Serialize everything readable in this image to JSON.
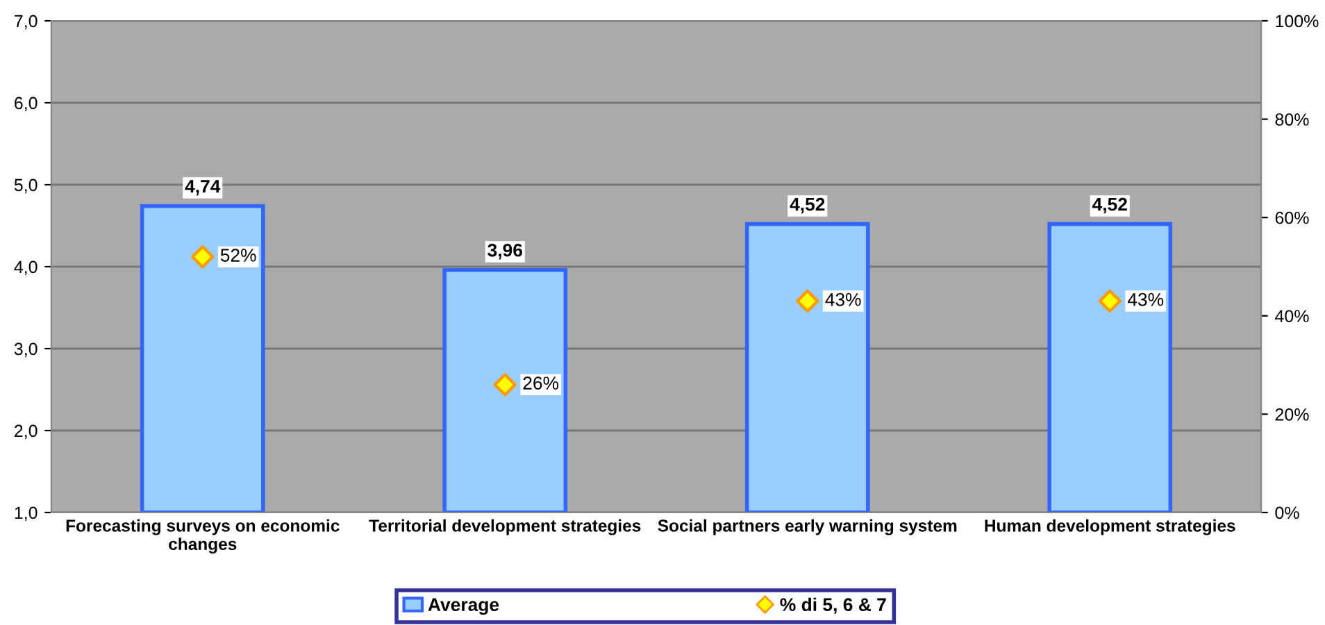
{
  "chart_data": {
    "type": "bar",
    "categories": [
      "Forecasting surveys on economic\nchanges",
      "Territorial development strategies",
      "Social partners early warning system",
      "Human development strategies"
    ],
    "series": [
      {
        "name": "Average",
        "color": "#99ccff",
        "values": [
          4.74,
          3.96,
          4.52,
          4.52
        ],
        "value_labels": [
          "4,74",
          "3,96",
          "4,52",
          "4,52"
        ]
      },
      {
        "name": "% di 5, 6 & 7",
        "type": "scatter",
        "axis": "y2",
        "color": "#ffff00",
        "marker": "diamond",
        "values": [
          52,
          26,
          43,
          43
        ],
        "value_labels": [
          "52%",
          "26%",
          "43%",
          "43%"
        ]
      }
    ],
    "ylim": [
      1,
      7
    ],
    "yticks": [
      {
        "value": 1,
        "label": "1,0"
      },
      {
        "value": 2,
        "label": "2,0"
      },
      {
        "value": 3,
        "label": "3,0"
      },
      {
        "value": 4,
        "label": "4,0"
      },
      {
        "value": 5,
        "label": "5,0"
      },
      {
        "value": 6,
        "label": "6,0"
      },
      {
        "value": 7,
        "label": "7,0"
      }
    ],
    "y2lim": [
      0,
      100
    ],
    "y2ticks": [
      {
        "value": 0,
        "label": "0%"
      },
      {
        "value": 20,
        "label": "20%"
      },
      {
        "value": 40,
        "label": "40%"
      },
      {
        "value": 60,
        "label": "60%"
      },
      {
        "value": 80,
        "label": "80%"
      },
      {
        "value": 100,
        "label": "100%"
      }
    ],
    "grid": "y",
    "legend": "bottom"
  }
}
